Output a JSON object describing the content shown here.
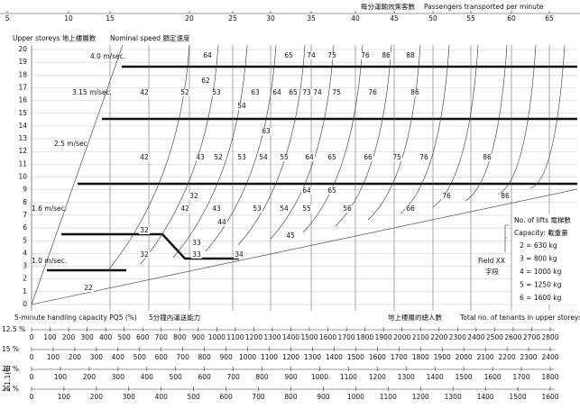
{
  "header": {
    "top_title_zh": "每分運輸效乘客數",
    "top_title_en": "Passengers transported per minute",
    "left_title": "Upper storeys 地上樓層數",
    "speed_title": "Nominal speed 額定速度"
  },
  "top_scale": [
    5,
    10,
    15,
    20,
    25,
    30,
    35,
    40,
    45,
    50,
    55,
    60,
    65
  ],
  "floors": [
    0,
    1,
    2,
    3,
    4,
    5,
    6,
    7,
    8,
    9,
    10,
    11,
    12,
    13,
    14,
    15,
    16,
    17,
    18,
    19,
    20
  ],
  "speeds": [
    "4.0 m/sec.",
    "3.15 m/sec.",
    "2.5 m/sec",
    "1.6 m/sec.",
    "1.0 m/sec."
  ],
  "fields": [
    "64",
    "65",
    "74",
    "75",
    "76",
    "86",
    "88",
    "62",
    "42",
    "52",
    "53",
    "63",
    "64",
    "65",
    "73",
    "74",
    "75",
    "76",
    "86",
    "54",
    "63",
    "42",
    "43",
    "52",
    "53",
    "54",
    "55",
    "64",
    "65",
    "66",
    "75",
    "76",
    "86",
    "64",
    "65",
    "32",
    "76",
    "86",
    "42",
    "43",
    "53",
    "54",
    "55",
    "56",
    "66",
    "44",
    "32",
    "45",
    "33",
    "32",
    "33",
    "34",
    "22"
  ],
  "legend": {
    "lifts": "No. of lifts 電梯數",
    "capacity": "Capacity: 載重量",
    "entries": [
      "2 = 630 kg",
      "3 = 800 kg",
      "4 = 1000 kg",
      "5 = 1250 kg",
      "6 = 1600 kg"
    ],
    "field": "Field XX",
    "field_zh": "字段"
  },
  "bottom": {
    "title_en": "5-minute handling capacity PQ5 (%)",
    "title_zh": "5分鐘內運送能力",
    "tenants_zh": "地上樓層的總人數",
    "tenants_en": "Total no. of tenants in upper storeys",
    "scales": [
      {
        "label": "12.5 %",
        "ticks": [
          0,
          100,
          200,
          300,
          400,
          500,
          600,
          700,
          800,
          900,
          1000,
          1100,
          1200,
          1300,
          1400,
          1500,
          1600,
          1700,
          1800,
          1900,
          2000,
          2100,
          2200,
          2300,
          2400,
          2500,
          2600,
          2700,
          2800
        ]
      },
      {
        "label": "15 %",
        "ticks": [
          0,
          100,
          200,
          300,
          400,
          500,
          600,
          700,
          800,
          900,
          1000,
          1100,
          1200,
          1300,
          1400,
          1500,
          1600,
          1700,
          1800,
          1900,
          2000,
          2100,
          2200,
          2300,
          2400
        ]
      },
      {
        "label": "20 %",
        "ticks": [
          0,
          100,
          200,
          300,
          400,
          500,
          600,
          700,
          800,
          900,
          1000,
          1100,
          1200,
          1300,
          1400,
          1500,
          1600,
          1700,
          1800
        ]
      },
      {
        "label": "25 %",
        "ticks": [
          0,
          100,
          200,
          300,
          400,
          500,
          600,
          700,
          800,
          900,
          1000,
          1100,
          1200,
          1300,
          1400,
          1500,
          1600
        ]
      }
    ]
  },
  "side_note": "2.1.1(6)"
}
